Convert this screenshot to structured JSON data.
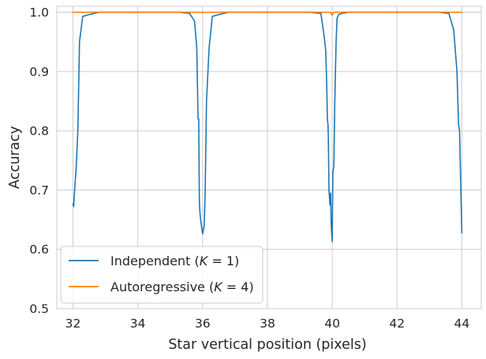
{
  "chart_data": {
    "type": "line",
    "title": "",
    "xlabel": "Star vertical position (pixels)",
    "ylabel": "Accuracy",
    "xlim": [
      31.5,
      44.6
    ],
    "ylim": [
      0.5,
      1.01
    ],
    "xticks": [
      32,
      34,
      36,
      38,
      40,
      42,
      44
    ],
    "xtick_labels": [
      "32",
      "34",
      "36",
      "38",
      "40",
      "42",
      "44"
    ],
    "yticks": [
      0.5,
      0.6,
      0.7,
      0.8,
      0.9,
      1.0
    ],
    "ytick_labels": [
      "0.5",
      "0.6",
      "0.7",
      "0.8",
      "0.9",
      "1.0"
    ],
    "grid": true,
    "legend_position": "lower-left",
    "series": [
      {
        "name": "Independent (K = 1)",
        "legend_prefix": "Independent (",
        "legend_var": "K",
        "legend_eq": " = 1)",
        "color": "#1f77b4",
        "x": [
          32.0,
          32.02,
          32.05,
          32.1,
          32.15,
          32.2,
          32.3,
          32.5,
          32.8,
          33.5,
          34.5,
          35.3,
          35.6,
          35.75,
          35.82,
          35.86,
          35.88,
          35.9,
          35.92,
          35.95,
          36.0,
          36.05,
          36.08,
          36.12,
          36.2,
          36.3,
          36.5,
          36.8,
          37.5,
          38.5,
          39.3,
          39.65,
          39.75,
          39.8,
          39.83,
          39.85,
          39.87,
          39.88,
          39.9,
          39.93,
          39.95,
          39.97,
          40.0,
          40.02,
          40.05,
          40.08,
          40.12,
          40.15,
          40.2,
          40.3,
          40.5,
          40.8,
          41.5,
          42.5,
          43.3,
          43.6,
          43.75,
          43.85,
          43.9,
          43.93,
          43.95,
          43.97,
          44.0
        ],
        "y": [
          0.677,
          0.672,
          0.7,
          0.74,
          0.8,
          0.95,
          0.993,
          0.996,
          1.0,
          1.0,
          1.0,
          1.0,
          0.998,
          0.985,
          0.94,
          0.82,
          0.82,
          0.68,
          0.66,
          0.645,
          0.626,
          0.64,
          0.7,
          0.85,
          0.94,
          0.993,
          0.996,
          1.0,
          1.0,
          1.0,
          1.0,
          0.998,
          0.96,
          0.935,
          0.88,
          0.82,
          0.81,
          0.79,
          0.7,
          0.675,
          0.695,
          0.64,
          0.613,
          0.73,
          0.74,
          0.85,
          0.95,
          0.99,
          0.996,
          0.998,
          1.0,
          1.0,
          1.0,
          1.0,
          1.0,
          0.998,
          0.97,
          0.9,
          0.81,
          0.8,
          0.75,
          0.7,
          0.628
        ]
      },
      {
        "name": "Autoregressive (K = 4)",
        "legend_prefix": "Autoregressive (",
        "legend_var": "K",
        "legend_eq": " = 4)",
        "color": "#ff7f0e",
        "x": [
          32.0,
          35.95,
          36.0,
          36.05,
          39.95,
          40.0,
          40.05,
          44.0
        ],
        "y": [
          1.0,
          1.0,
          0.999,
          1.0,
          1.0,
          0.995,
          1.0,
          1.0
        ]
      }
    ]
  }
}
